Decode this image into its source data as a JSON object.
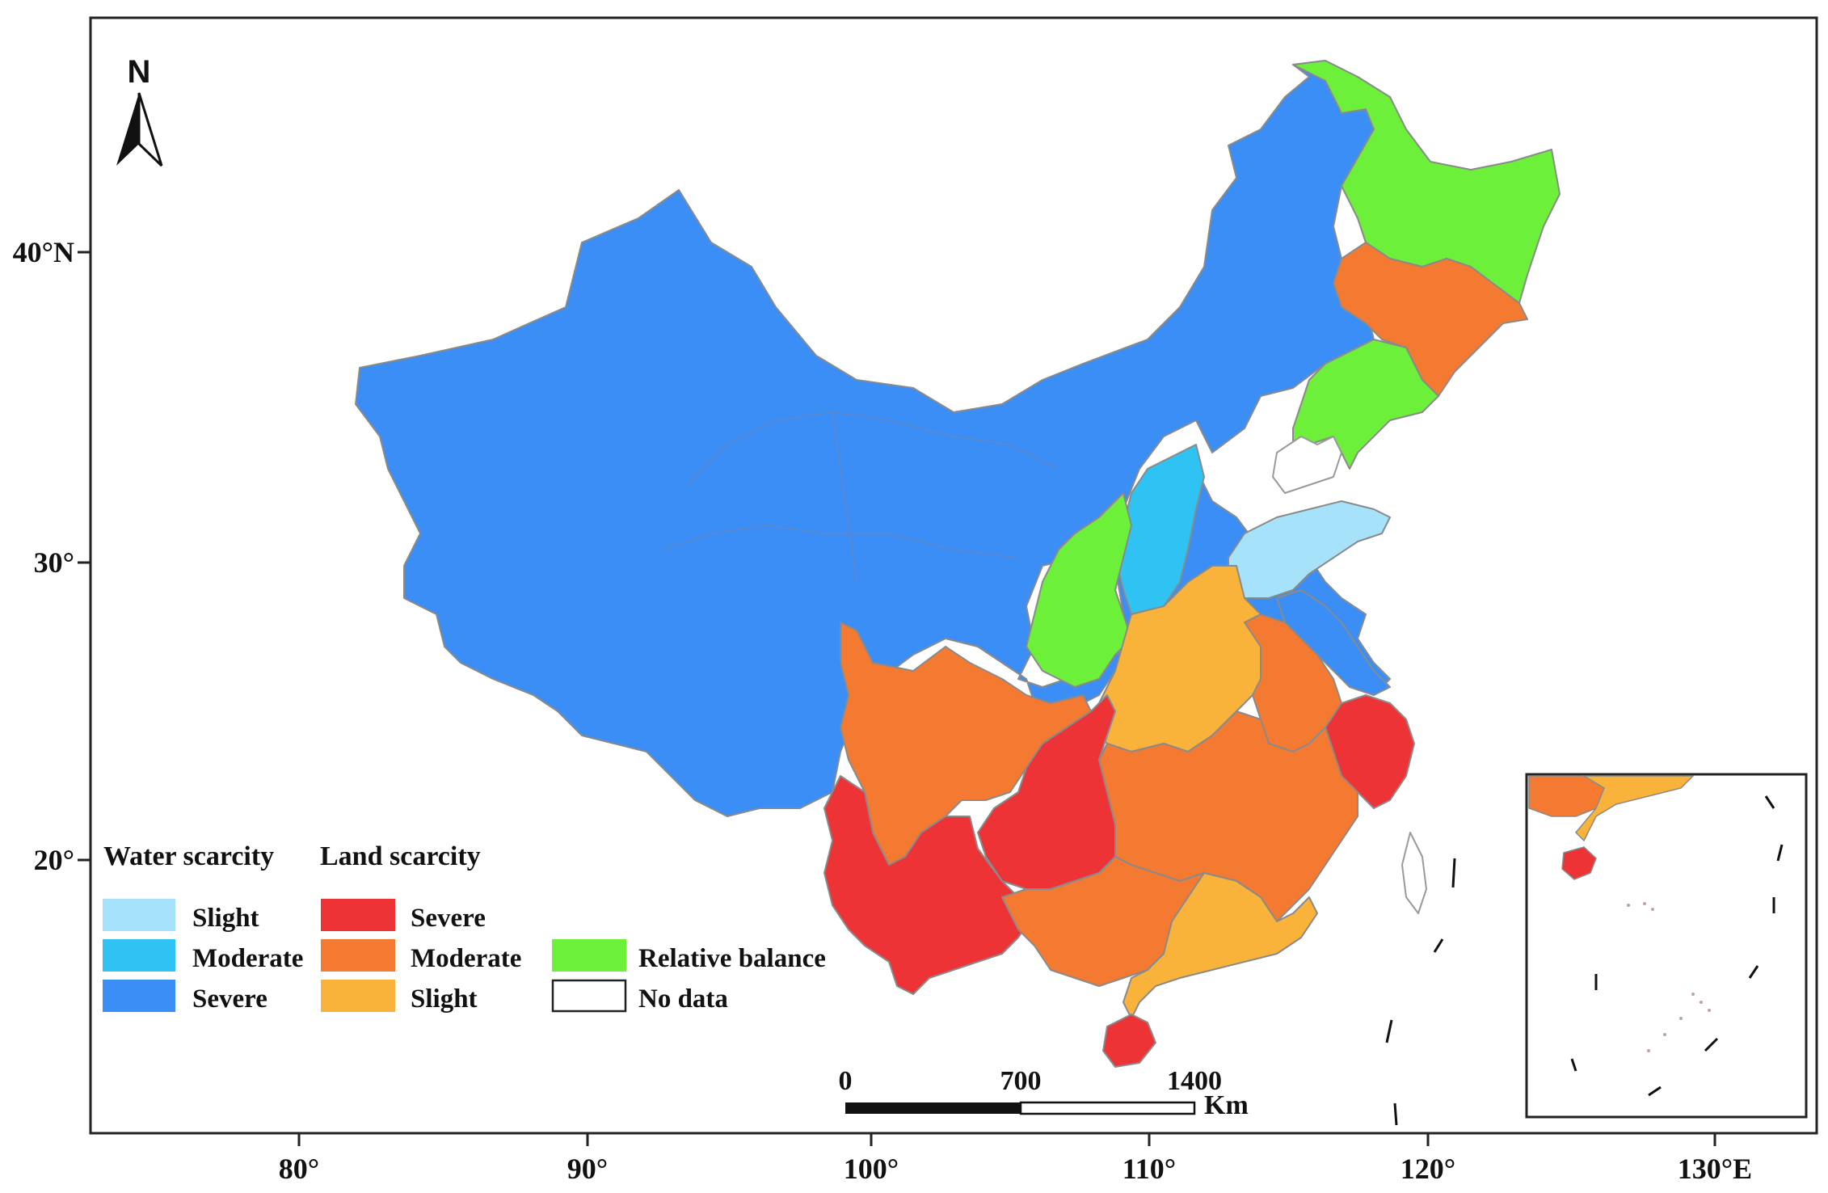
{
  "colors": {
    "water_slight": "#a6e3fb",
    "water_moderate": "#2ec3f3",
    "water_severe": "#3a8ef5",
    "land_severe": "#ee3337",
    "land_moderate": "#f47a32",
    "land_slight": "#f9b23a",
    "relative_balance": "#6cf03a",
    "no_data": "#ffffff",
    "boundary": "#8a8a8a"
  },
  "north_label": "N",
  "axes": {
    "lat_labels": [
      "40°N",
      "30°",
      "20°"
    ],
    "lon_labels": [
      "80°",
      "90°",
      "100°",
      "110°",
      "120°",
      "130°E"
    ]
  },
  "legend": {
    "water_title": "Water scarcity",
    "land_title": "Land scarcity",
    "water_items": [
      {
        "label": "Slight",
        "color": "#a6e3fb"
      },
      {
        "label": "Moderate",
        "color": "#2ec3f3"
      },
      {
        "label": "Severe",
        "color": "#3a8ef5"
      }
    ],
    "land_items": [
      {
        "label": "Severe",
        "color": "#ee3337"
      },
      {
        "label": "Moderate",
        "color": "#f47a32"
      },
      {
        "label": "Slight",
        "color": "#f9b23a"
      }
    ],
    "other_items": [
      {
        "label": "Relative balance",
        "color": "#6cf03a"
      },
      {
        "label": "No data",
        "color": "#ffffff"
      }
    ]
  },
  "scale_bar": {
    "ticks": [
      "0",
      "700",
      "1400"
    ],
    "unit": "Km"
  }
}
